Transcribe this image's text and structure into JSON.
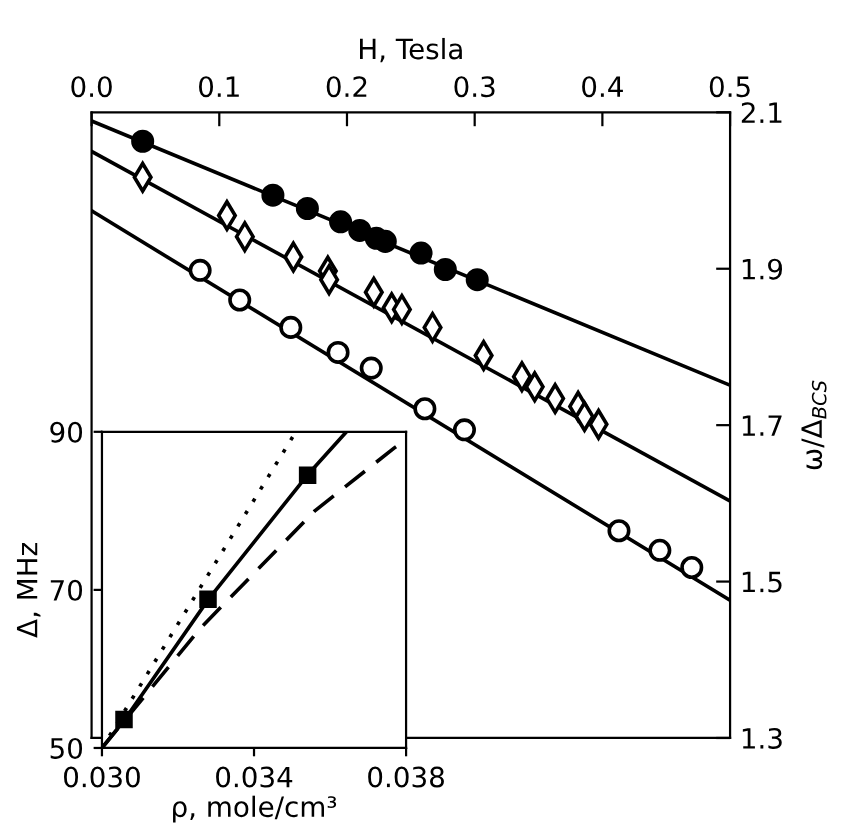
{
  "chart_data": [
    {
      "type": "scatter",
      "xlabel": "H, Tesla",
      "ylabel": "ω/Δ$_{BCS}$",
      "xlim": [
        0.0,
        0.5
      ],
      "xticks": [
        {
          "value": 0.0,
          "label": "0.0"
        },
        0.1,
        0.2,
        0.3,
        0.4,
        0.5
      ],
      "ylim": [
        1.3,
        2.1
      ],
      "yticks": [
        1.3,
        1.5,
        1.7,
        1.9,
        2.1
      ],
      "grid": false,
      "legend": false,
      "series": [
        {
          "marker": "circle",
          "color": "#000000",
          "x": [
            0.04,
            0.142,
            0.169,
            0.195,
            0.21,
            0.223,
            0.23,
            0.258,
            0.277,
            0.302
          ],
          "values": [
            2.063,
            1.994,
            1.977,
            1.96,
            1.949,
            1.939,
            1.935,
            1.92,
            1.899,
            1.886
          ]
        },
        {
          "marker": "diamond",
          "color": "#ffffff",
          "x": [
            0.04,
            0.106,
            0.12,
            0.158,
            0.185,
            0.186,
            0.221,
            0.235,
            0.243,
            0.267,
            0.307,
            0.337,
            0.347,
            0.363,
            0.381,
            0.386,
            0.397
          ],
          "values": [
            2.017,
            1.968,
            1.941,
            1.915,
            1.897,
            1.886,
            1.87,
            1.85,
            1.848,
            1.825,
            1.789,
            1.762,
            1.749,
            1.734,
            1.724,
            1.711,
            1.701
          ]
        },
        {
          "marker": "circle",
          "color": "#ffffff",
          "x": [
            0.085,
            0.116,
            0.156,
            0.193,
            0.219,
            0.261,
            0.292,
            0.413,
            0.445,
            0.47
          ],
          "values": [
            1.898,
            1.86,
            1.825,
            1.793,
            1.773,
            1.721,
            1.694,
            1.565,
            1.54,
            1.518
          ]
        },
        {
          "type": "line",
          "line_style": "solid",
          "color": "#000000",
          "x": [
            0.0,
            0.5
          ],
          "values": [
            2.089,
            1.751
          ]
        },
        {
          "type": "line",
          "line_style": "solid",
          "color": "#000000",
          "x": [
            0.0,
            0.5
          ],
          "values": [
            2.05,
            1.603
          ]
        },
        {
          "type": "line",
          "line_style": "solid",
          "color": "#000000",
          "x": [
            0.0,
            0.5
          ],
          "values": [
            1.974,
            1.476
          ]
        }
      ]
    },
    {
      "type": "line",
      "xlabel": "ρ, mole/cm³",
      "ylabel": "Δ, MHz",
      "xlim": [
        0.03,
        0.038
      ],
      "xticks": [
        {
          "value": 0.03,
          "label": "0.030"
        },
        0.034,
        {
          "value": 0.038,
          "label": "0.038"
        }
      ],
      "ylim": [
        50,
        90
      ],
      "yticks": [
        50,
        70,
        90
      ],
      "grid": false,
      "legend": false,
      "series": [
        {
          "line_style": "solid",
          "color": "#000000",
          "x": [
            0.03,
            0.0306,
            0.0328,
            0.0354,
            0.03643
          ],
          "values": [
            50,
            53.6,
            68.8,
            84.5,
            90
          ]
        },
        {
          "line_style": "dashed",
          "color": "#000000",
          "x": [
            0.03,
            0.0326,
            0.0356,
            0.0377,
            0.038
          ],
          "values": [
            50,
            65.2,
            80.0,
            88.0,
            89.0
          ]
        },
        {
          "line_style": "dotted",
          "color": "#000000",
          "x": [
            0.03,
            0.0351
          ],
          "values": [
            50,
            90
          ]
        },
        {
          "type": "scatter",
          "marker": "square",
          "color": "#000000",
          "x": [
            0.03058,
            0.03279,
            0.03541
          ],
          "values": [
            53.6,
            68.8,
            84.5
          ]
        }
      ]
    }
  ]
}
